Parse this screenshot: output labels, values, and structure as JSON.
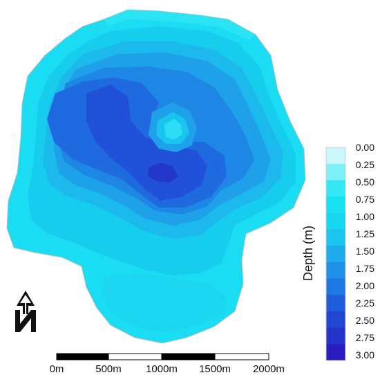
{
  "legend": {
    "title": "Depth (m)",
    "ticks": [
      "0.00",
      "0.25",
      "0.50",
      "0.75",
      "1.00",
      "1.25",
      "1.50",
      "1.75",
      "2.00",
      "2.25",
      "2.50",
      "2.75",
      "3.00"
    ],
    "bands": [
      "#c9f7fb",
      "#7ff0f7",
      "#33e8f4",
      "#19e1f2",
      "#17d6ef",
      "#1bc4ee",
      "#1eaaeb",
      "#1f92e8",
      "#1e78e2",
      "#1f5ddc",
      "#2146d2",
      "#2434c9",
      "#2a1cc0"
    ]
  },
  "scale_bar": {
    "labels": [
      "0m",
      "500m",
      "1000m",
      "1500m",
      "2000m"
    ]
  },
  "north_arrow": {
    "letter": "N"
  }
}
